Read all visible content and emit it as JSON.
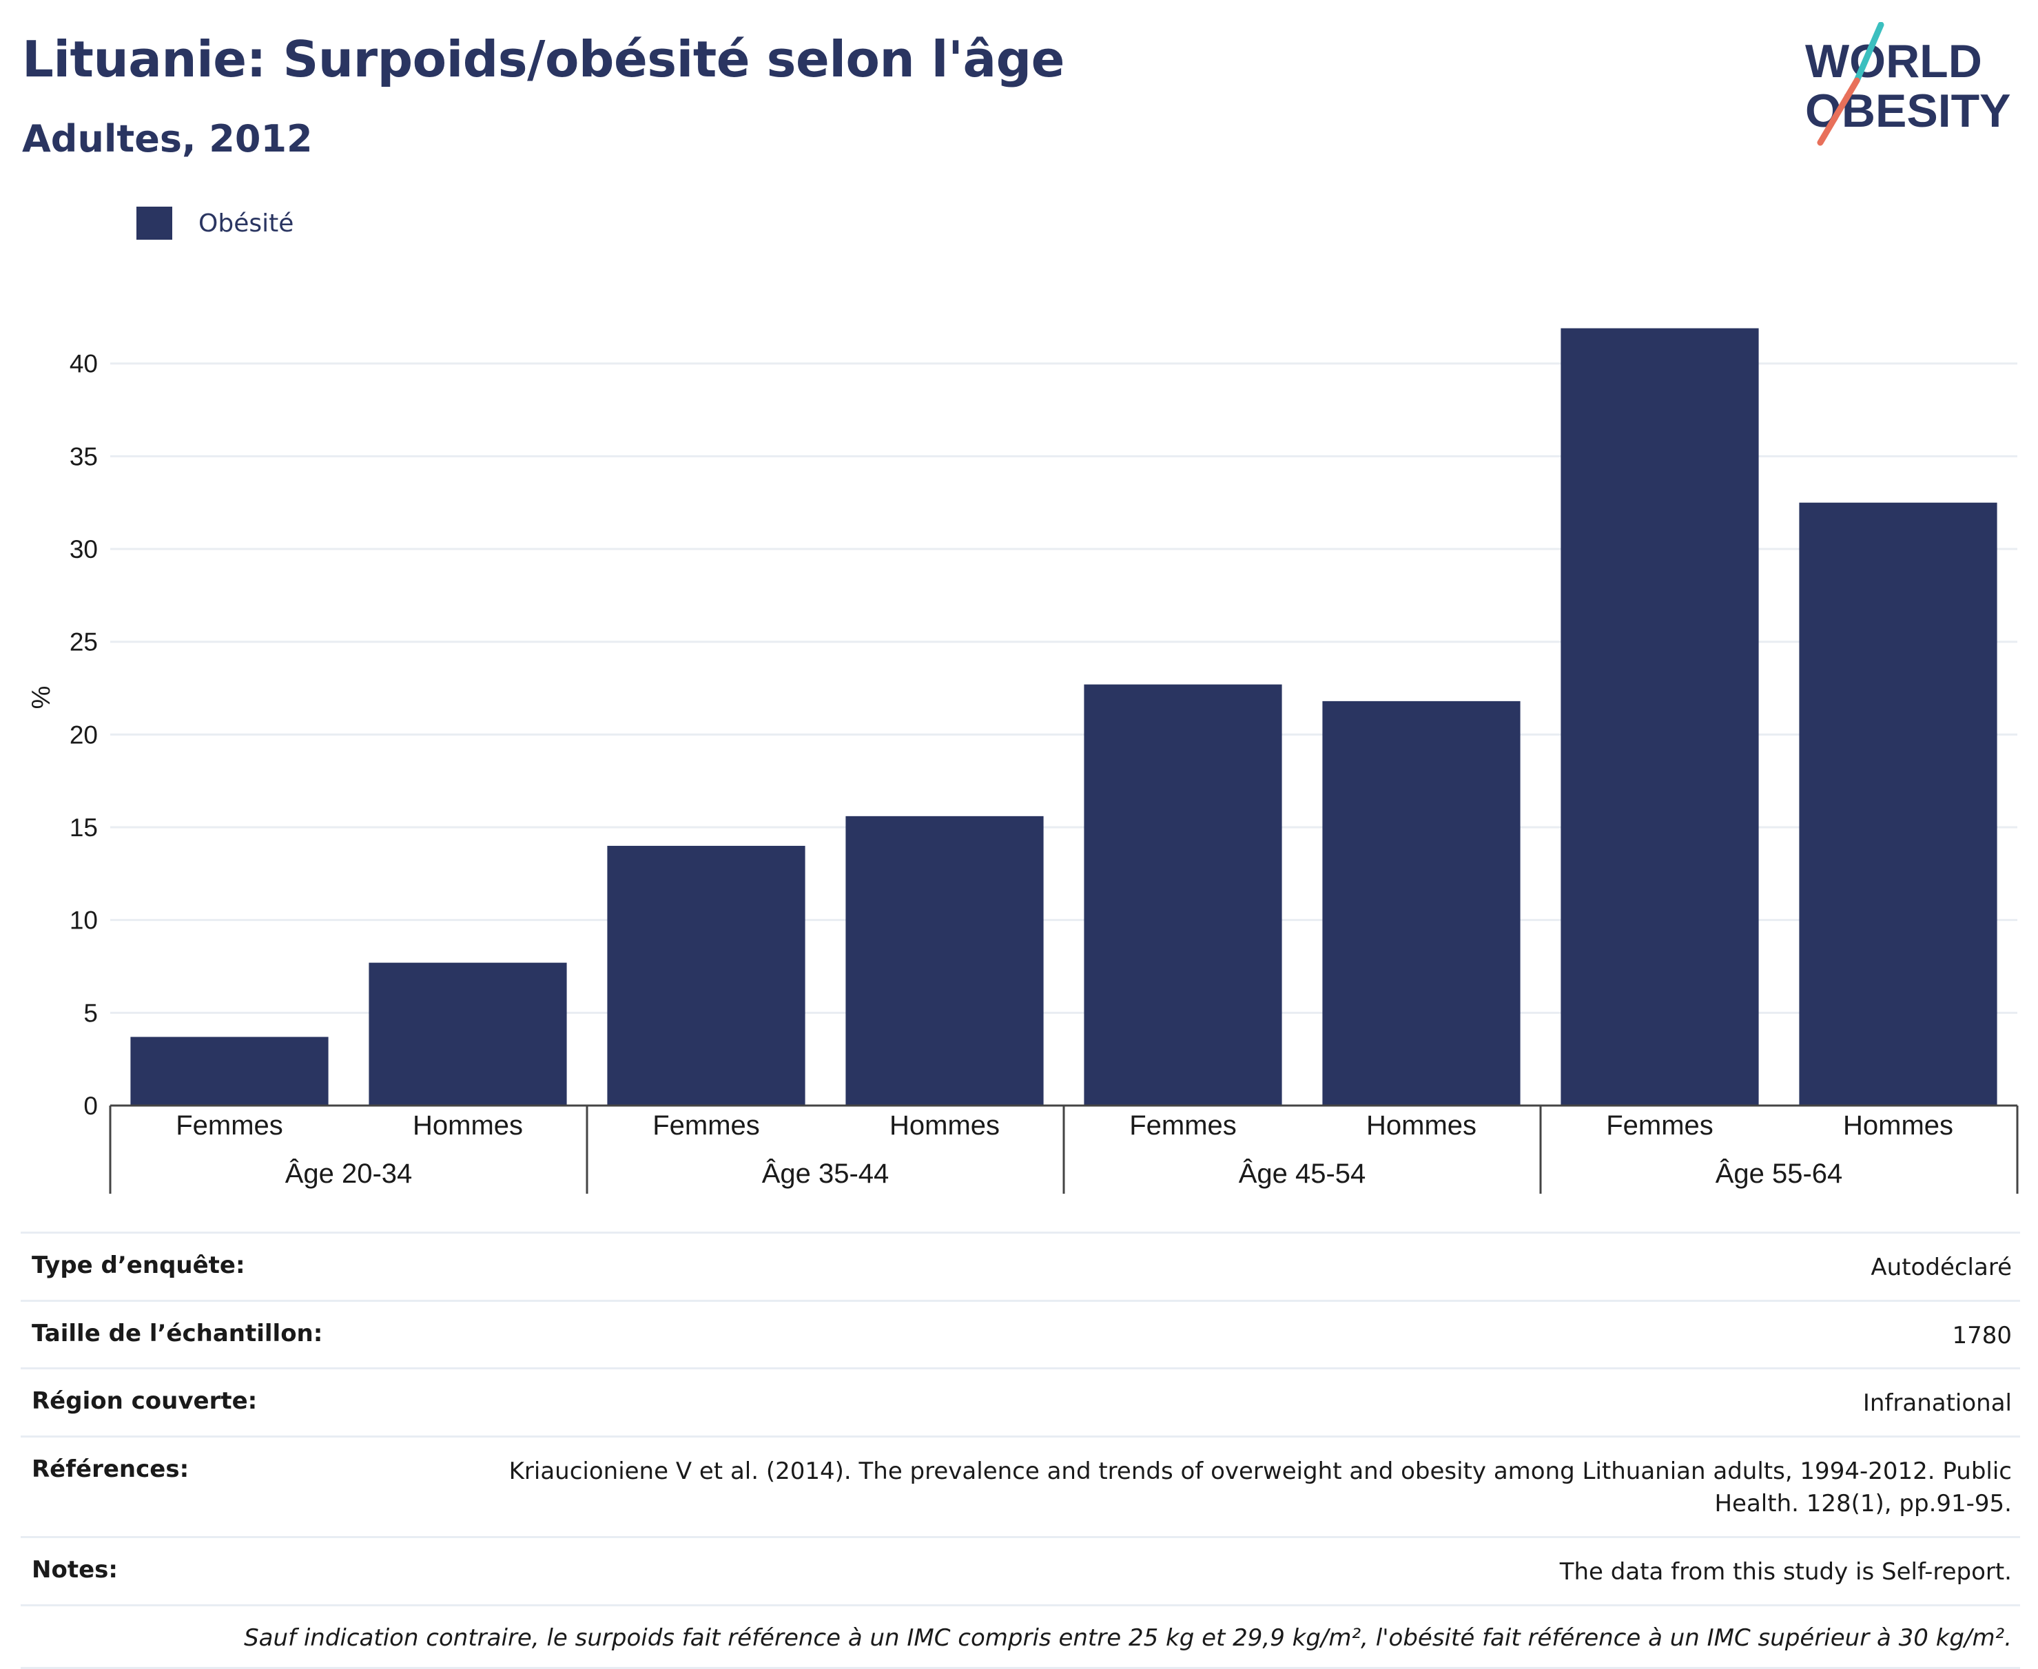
{
  "header": {
    "title": "Lituanie: Surpoids/obésité selon l'âge",
    "subtitle": "Adultes, 2012"
  },
  "logo": {
    "line1": "WORLD",
    "line2": "OBESITY",
    "colors": {
      "text": "#2a3561",
      "slash_top": "#3bbfbf",
      "slash_bottom": "#e8705a"
    }
  },
  "legend": {
    "label": "Obésité",
    "color": "#2a3561"
  },
  "chart_data": {
    "type": "bar",
    "title": "Lituanie: Surpoids/obésité selon l'âge",
    "subtitle": "Adultes, 2012",
    "ylabel": "%",
    "xlabel": "",
    "ylim": [
      0,
      44
    ],
    "yticks": [
      0,
      5,
      10,
      15,
      20,
      25,
      30,
      35,
      40
    ],
    "grid": true,
    "legend_placement": "top-left",
    "groups": [
      "Âge 20-34",
      "Âge 35-44",
      "Âge 45-54",
      "Âge 55-64"
    ],
    "categories": [
      "Femmes",
      "Hommes"
    ],
    "series": [
      {
        "name": "Obésité",
        "color": "#2a3561",
        "values": [
          [
            3.7,
            7.7
          ],
          [
            14.0,
            15.6
          ],
          [
            22.7,
            21.8
          ],
          [
            41.9,
            32.5
          ]
        ]
      }
    ]
  },
  "info_table": {
    "rows": [
      {
        "key": "Type d’enquête:",
        "value": "Autodéclaré"
      },
      {
        "key": "Taille de l’échantillon:",
        "value": "1780"
      },
      {
        "key": "Région couverte:",
        "value": "Infranational"
      },
      {
        "key": "Références:",
        "value": "Kriaucioniene V et al. (2014). The prevalence and trends of overweight and obesity among Lithuanian adults, 1994-2012. Public Health. 128(1), pp.91-95."
      },
      {
        "key": "Notes:",
        "value": "The data from this study is Self-report."
      }
    ],
    "note": "Sauf indication contraire, le surpoids fait référence à un IMC compris entre 25 kg et 29,9 kg/m², l'obésité fait référence à un IMC supérieur à 30 kg/m²."
  }
}
